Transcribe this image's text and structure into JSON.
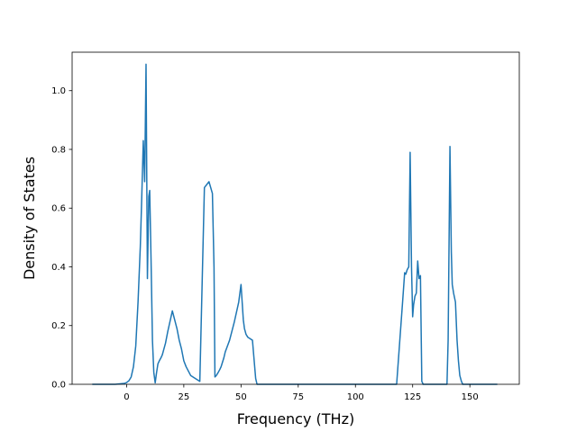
{
  "chart_data": {
    "type": "line",
    "title": "",
    "xlabel": "Frequency (THz)",
    "ylabel": "Density of States",
    "xlim": [
      -23.8,
      171.6
    ],
    "ylim": [
      0,
      1.131
    ],
    "xticks": [
      0,
      25,
      50,
      75,
      100,
      125,
      150
    ],
    "yticks": [
      0.0,
      0.2,
      0.4,
      0.6,
      0.8,
      1.0
    ],
    "xtick_labels": [
      "0",
      "25",
      "50",
      "75",
      "100",
      "125",
      "150"
    ],
    "ytick_labels": [
      "0.0",
      "0.2",
      "0.4",
      "0.6",
      "0.8",
      "1.0"
    ],
    "grid": false,
    "legend": false,
    "series": [
      {
        "color": "#1f77b4",
        "x": [
          -15,
          -10,
          -5,
          -1,
          0,
          1,
          2,
          3,
          4,
          5,
          6,
          6.6,
          7.3,
          7.9,
          8.5,
          9.1,
          9.7,
          10.1,
          10.7,
          11.3,
          11.9,
          12.5,
          13.1,
          13.7,
          14.3,
          15,
          15.6,
          16.3,
          17,
          18,
          20,
          22,
          23,
          24,
          24.5,
          25,
          26,
          27,
          28,
          30,
          32,
          34,
          36,
          37.5,
          38.2,
          38.6,
          39.2,
          40,
          40.7,
          41.3,
          41.9,
          42.5,
          43.1,
          45,
          47,
          49,
          50,
          51,
          51.5,
          52.2,
          53,
          54,
          55,
          56.4,
          57,
          57.4,
          58,
          60,
          80,
          100,
          118,
          120.6,
          121.5,
          122,
          122.6,
          123.3,
          123.9,
          124.5,
          125,
          125.4,
          126,
          126.6,
          127.2,
          127.8,
          128.4,
          129,
          129.6,
          130.2,
          130.8,
          131.4,
          131.8,
          132.2,
          135,
          140,
          140.5,
          141.3,
          141.9,
          142.3,
          142.9,
          143.7,
          144.4,
          145,
          145.6,
          146.3,
          146.9,
          147.5,
          148,
          149,
          155,
          160,
          162
        ],
        "y": [
          0,
          0,
          0,
          0.003,
          0.006,
          0.012,
          0.025,
          0.06,
          0.13,
          0.28,
          0.47,
          0.63,
          0.83,
          0.69,
          1.09,
          0.36,
          0.64,
          0.66,
          0.42,
          0.15,
          0.04,
          0.005,
          0.04,
          0.07,
          0.08,
          0.09,
          0.1,
          0.12,
          0.14,
          0.18,
          0.25,
          0.19,
          0.15,
          0.12,
          0.1,
          0.08,
          0.06,
          0.045,
          0.03,
          0.02,
          0.01,
          0.67,
          0.69,
          0.65,
          0.4,
          0.025,
          0.03,
          0.04,
          0.05,
          0.06,
          0.075,
          0.09,
          0.11,
          0.15,
          0.21,
          0.28,
          0.34,
          0.22,
          0.19,
          0.17,
          0.16,
          0.155,
          0.15,
          0.02,
          0,
          0,
          0,
          0,
          0,
          0,
          0,
          0.28,
          0.38,
          0.375,
          0.39,
          0.4,
          0.79,
          0.4,
          0.23,
          0.27,
          0.3,
          0.31,
          0.42,
          0.36,
          0.37,
          0.01,
          0,
          0,
          0,
          0,
          0,
          0,
          0,
          0,
          0.15,
          0.81,
          0.45,
          0.34,
          0.31,
          0.28,
          0.15,
          0.08,
          0.03,
          0.01,
          0,
          0,
          0,
          0,
          0,
          0,
          0
        ]
      }
    ]
  }
}
